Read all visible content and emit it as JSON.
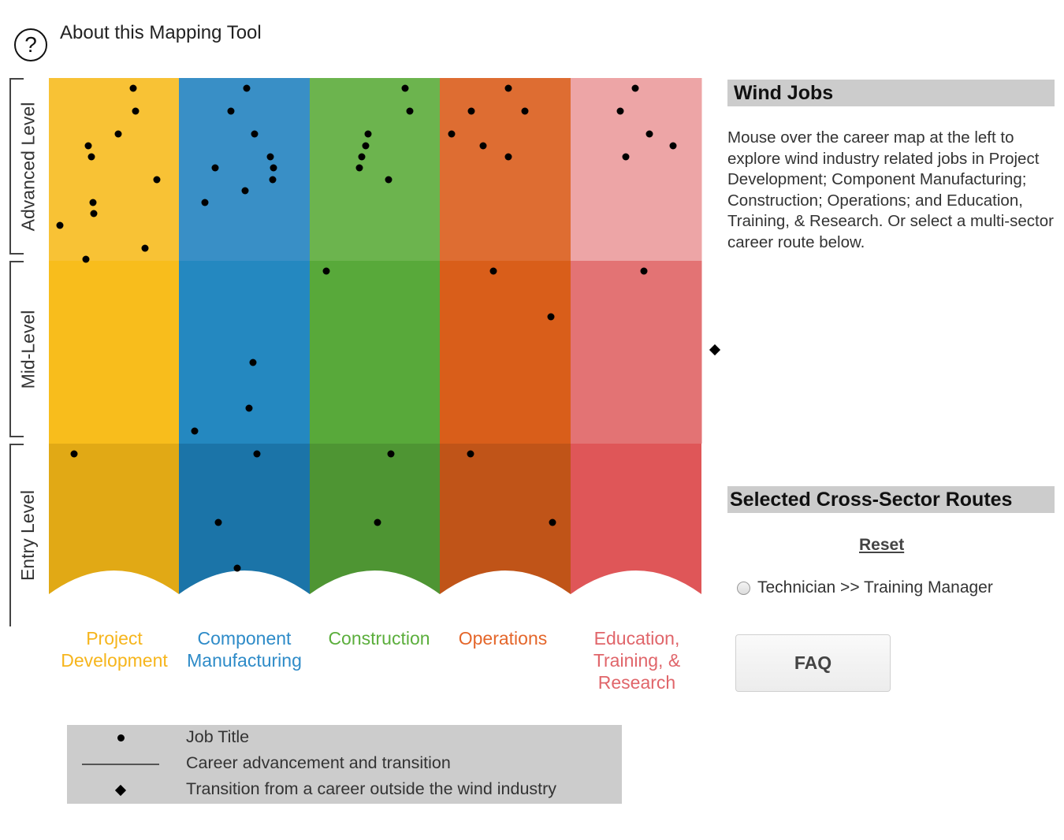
{
  "about": {
    "label": "About this Mapping Tool",
    "icon": "question-circle-icon"
  },
  "levels": [
    {
      "label": "Advanced Level"
    },
    {
      "label": "Mid-Level"
    },
    {
      "label": "Entry Level"
    }
  ],
  "sectors": [
    {
      "label": "Project Development",
      "label_color": "#F6B51C",
      "colors": {
        "advanced": "#F8C235",
        "mid": "#F8BD1C",
        "entry": "#E1A915"
      }
    },
    {
      "label": "Component Manufacturing",
      "label_color": "#2E8BC8",
      "colors": {
        "advanced": "#398FC6",
        "mid": "#2488C0",
        "entry": "#1B74A8"
      }
    },
    {
      "label": "Construction",
      "label_color": "#5BAE3C",
      "colors": {
        "advanced": "#6CB44E",
        "mid": "#58A93A",
        "entry": "#4E9533"
      }
    },
    {
      "label": "Operations",
      "label_color": "#E4662A",
      "colors": {
        "advanced": "#DE6D32",
        "mid": "#D95E1A",
        "entry": "#C05418"
      }
    },
    {
      "label": "Education, Training, & Research",
      "label_color": "#E0656A",
      "colors": {
        "advanced": "#EDA5A6",
        "mid": "#E37374",
        "entry": "#DF5658"
      }
    }
  ],
  "panel": {
    "heading": "Wind Jobs",
    "description": "Mouse over the career map at the left to explore wind industry related jobs in Project Development; Component Manufacturing; Construction; Operations; and Education, Training, & Research. Or select a multi-sector career route below.",
    "routes_heading": "Selected Cross-Sector Routes",
    "reset_label": "Reset",
    "routes": [
      {
        "label": "Technician >> Training Manager",
        "selected": false
      }
    ],
    "faq_label": "FAQ"
  },
  "legend": [
    {
      "symbol": "dot",
      "label": "Job Title"
    },
    {
      "symbol": "line",
      "label": "Career advancement and transition"
    },
    {
      "symbol": "diamond",
      "label": "Transition from a career outside the wind industry"
    }
  ],
  "markers": {
    "job_color": "#000000",
    "outside_transition_icon": "diamond-icon"
  }
}
